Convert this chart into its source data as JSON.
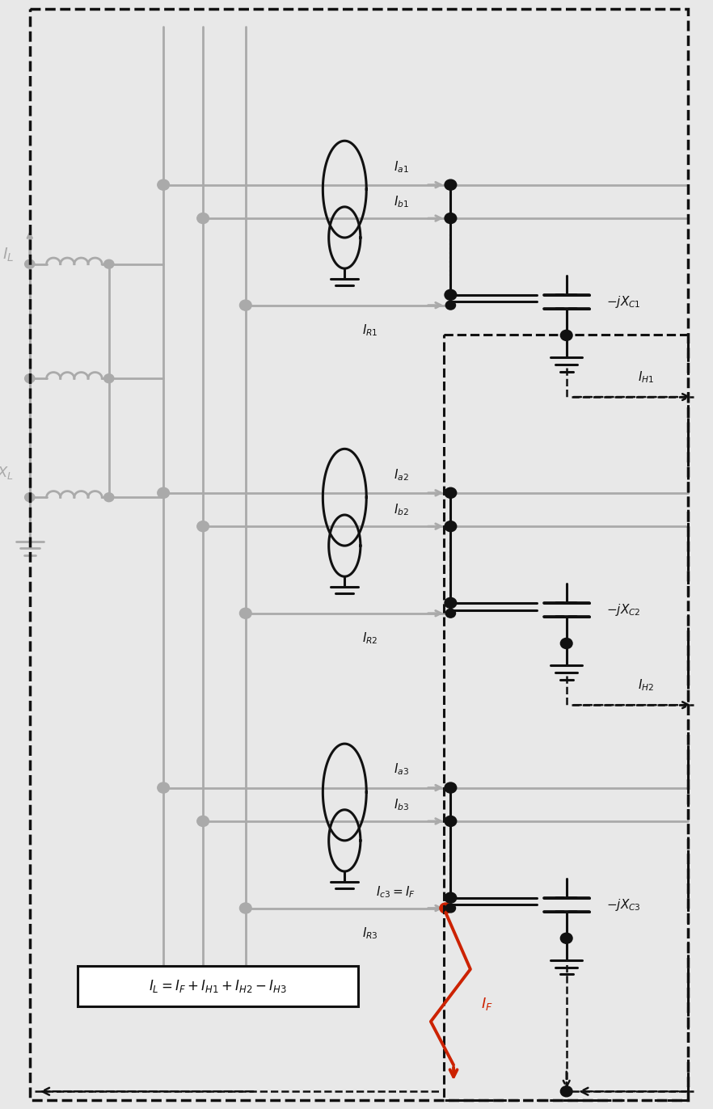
{
  "bg_color": "#e8e8e8",
  "gray": "#aaaaaa",
  "black": "#111111",
  "red": "#cc2200",
  "figsize": [
    8.82,
    13.72
  ],
  "dpi": 100,
  "sections": [
    {
      "label_a": "I_{a1}",
      "label_b": "I_{b1}",
      "label_R": "I_{R1}",
      "label_C": "-jX_{C1}",
      "label_H": "I_{H1}",
      "has_fault": false
    },
    {
      "label_a": "I_{a2}",
      "label_b": "I_{b2}",
      "label_R": "I_{R2}",
      "label_C": "-jX_{C2}",
      "label_H": "I_{H2}",
      "has_fault": false
    },
    {
      "label_a": "I_{a3}",
      "label_b": "I_{b3}",
      "label_R": "I_{R3}",
      "label_C": "-jX_{C3}",
      "label_H": "",
      "has_fault": true
    }
  ]
}
